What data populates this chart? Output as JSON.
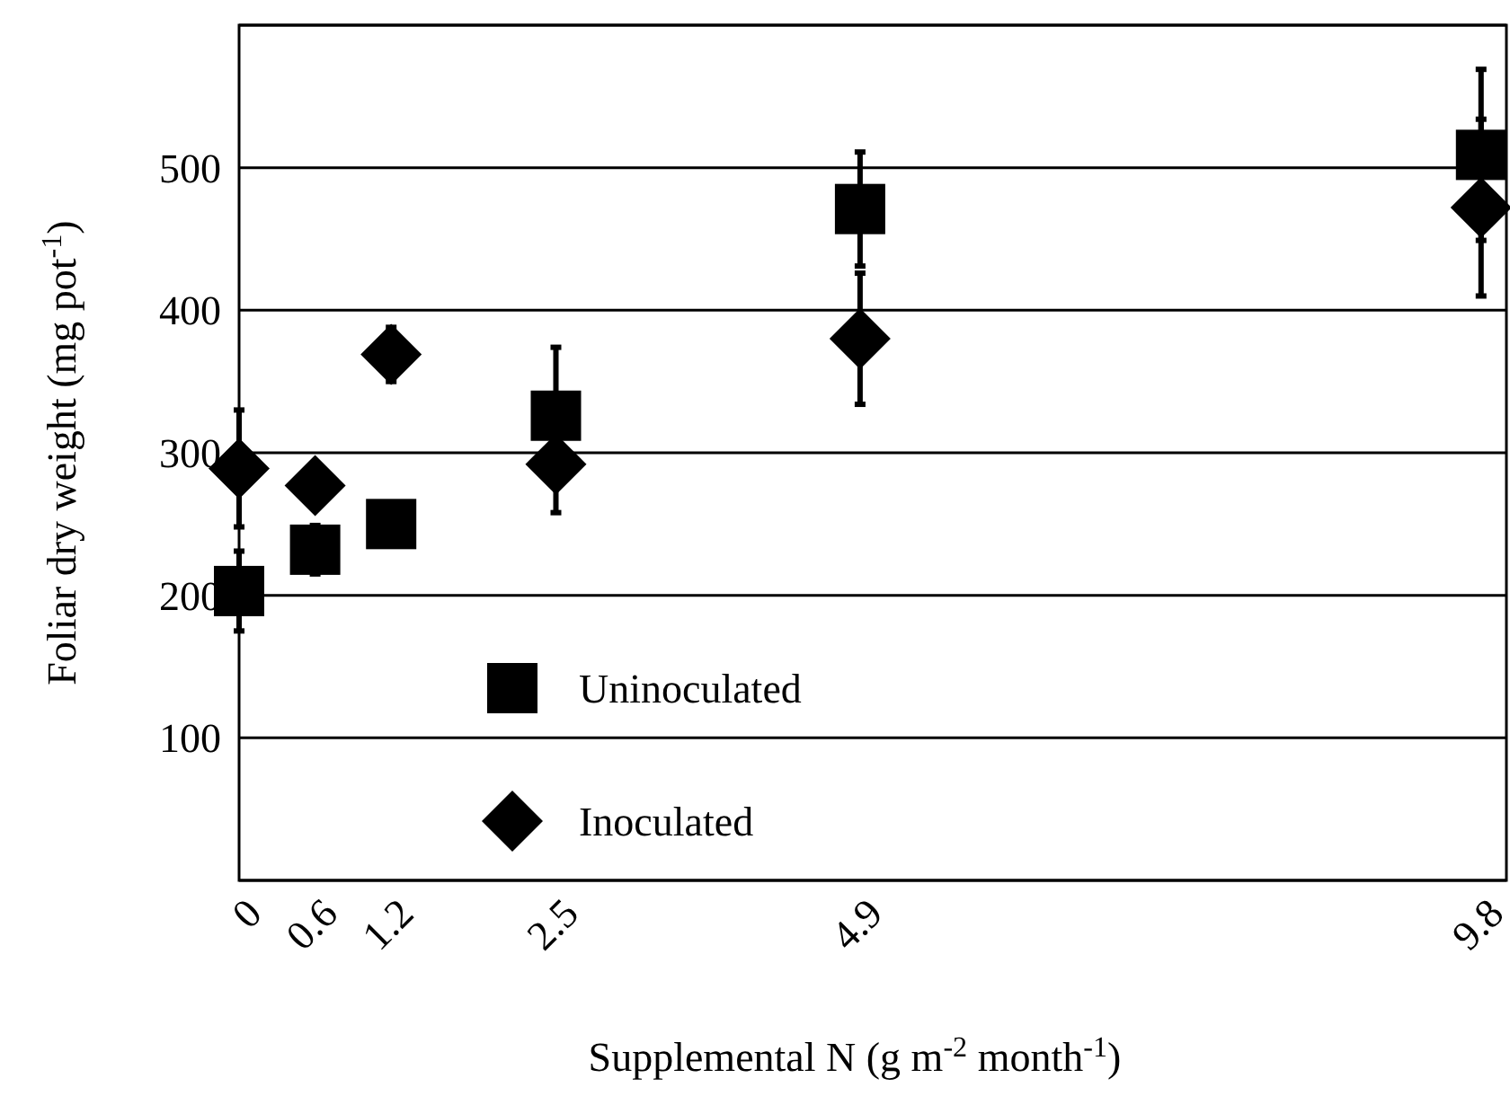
{
  "chart_data": {
    "type": "scatter",
    "xlabel": "Supplemental N (g m$^{-2}$ month$^{-1}$)",
    "ylabel": "Foliar dry weight (mg pot$^{-1}$)",
    "x": [
      0,
      0.6,
      1.2,
      2.5,
      4.9,
      9.8
    ],
    "xlim": [
      0,
      10
    ],
    "xticks": [
      0,
      0.6,
      1.2,
      2.5,
      4.9,
      9.8
    ],
    "ylim": [
      0,
      600
    ],
    "yticks": [
      {
        "value": 0,
        "label": null
      },
      100,
      200,
      300,
      400,
      500,
      {
        "value": 600,
        "label": null
      }
    ],
    "grid": "y",
    "legend": "bottom",
    "series": [
      {
        "name": "Uninoculated",
        "color": "#000000",
        "marker": "square",
        "values": [
          203,
          232,
          250,
          326,
          471,
          509
        ],
        "errors": [
          28,
          17,
          null,
          48,
          40,
          60
        ]
      },
      {
        "name": "Inoculated",
        "color": "#000000",
        "marker": "diamond",
        "values": [
          289,
          277,
          369,
          292,
          380,
          472
        ],
        "errors": [
          41,
          null,
          19,
          34,
          46,
          62
        ]
      }
    ]
  }
}
